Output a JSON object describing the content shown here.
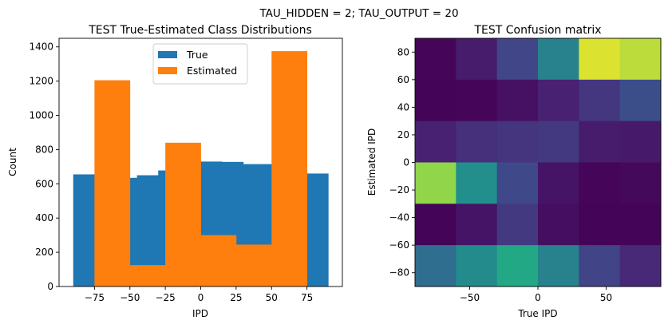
{
  "suptitle": "TAU_HIDDEN = 2; TAU_OUTPUT = 20",
  "chart_data": [
    {
      "type": "bar",
      "title": "TEST True-Estimated Class Distributions",
      "xlabel": "IPD",
      "ylabel": "Count",
      "xlim": [
        -100,
        100
      ],
      "ylim": [
        0,
        1450
      ],
      "xticks": [
        -75,
        -50,
        -25,
        0,
        25,
        50,
        75
      ],
      "xtick_labels": [
        "−75",
        "−50",
        "−25",
        "0",
        "25",
        "50",
        "75"
      ],
      "yticks": [
        0,
        200,
        400,
        600,
        800,
        1000,
        1200,
        1400
      ],
      "ytick_labels": [
        "0",
        "200",
        "400",
        "600",
        "800",
        "1000",
        "1200",
        "1400"
      ],
      "legend": {
        "position": "upper-center",
        "entries": [
          "True",
          "Estimated"
        ]
      },
      "series": [
        {
          "name": "True",
          "color": "#1f77b4",
          "bins": [
            {
              "x0": -90,
              "x1": -75,
              "value": 655
            },
            {
              "x0": -75,
              "x1": -60,
              "value": 645
            },
            {
              "x0": -60,
              "x1": -45,
              "value": 635
            },
            {
              "x0": -45,
              "x1": -30,
              "value": 650
            },
            {
              "x0": -30,
              "x1": -15,
              "value": 678
            },
            {
              "x0": -15,
              "x1": 0,
              "value": 735
            },
            {
              "x0": 0,
              "x1": 15,
              "value": 730
            },
            {
              "x0": 15,
              "x1": 30,
              "value": 728
            },
            {
              "x0": 30,
              "x1": 45,
              "value": 715
            },
            {
              "x0": 45,
              "x1": 60,
              "value": 715
            },
            {
              "x0": 60,
              "x1": 75,
              "value": 690
            },
            {
              "x0": 75,
              "x1": 90,
              "value": 660
            }
          ]
        },
        {
          "name": "Estimated",
          "color": "#ff7f0e",
          "bins": [
            {
              "x0": -75,
              "x1": -50,
              "value": 1205
            },
            {
              "x0": -50,
              "x1": -25,
              "value": 125
            },
            {
              "x0": -25,
              "x1": 0,
              "value": 840
            },
            {
              "x0": 0,
              "x1": 25,
              "value": 300
            },
            {
              "x0": 25,
              "x1": 50,
              "value": 245
            },
            {
              "x0": 50,
              "x1": 75,
              "value": 1375
            }
          ]
        }
      ]
    },
    {
      "type": "heatmap",
      "title": "TEST Confusion matrix",
      "xlabel": "True IPD",
      "ylabel": "Estimated IPD",
      "colormap": "viridis",
      "xlim": [
        -90,
        90
      ],
      "ylim": [
        -90,
        90
      ],
      "xticks": [
        -50,
        0,
        50
      ],
      "xtick_labels": [
        "−50",
        "0",
        "50"
      ],
      "yticks": [
        -80,
        -60,
        -40,
        -20,
        0,
        20,
        40,
        60,
        80
      ],
      "ytick_labels": [
        "−80",
        "−60",
        "−40",
        "−20",
        "0",
        "20",
        "40",
        "60",
        "80"
      ],
      "x_edges": [
        -90,
        -60,
        -30,
        0,
        30,
        60,
        90
      ],
      "y_edges": [
        -90,
        -60,
        -30,
        0,
        30,
        60,
        90
      ],
      "row_bands_top_to_bottom": [
        {
          "y0": 60,
          "y1": 90,
          "values": [
            0.02,
            0.1,
            0.26,
            0.55,
            0.97,
            0.94
          ]
        },
        {
          "y0": 30,
          "y1": 60,
          "values": [
            0.01,
            0.02,
            0.06,
            0.12,
            0.2,
            0.3
          ]
        },
        {
          "y0": 0,
          "y1": 30,
          "values": [
            0.12,
            0.17,
            0.19,
            0.21,
            0.1,
            0.09
          ]
        },
        {
          "y0": -30,
          "y1": 0,
          "values": [
            0.9,
            0.62,
            0.27,
            0.07,
            0.02,
            0.03
          ]
        },
        {
          "y0": -60,
          "y1": -30,
          "values": [
            0.01,
            0.07,
            0.21,
            0.05,
            0.01,
            0.01
          ]
        },
        {
          "y0": -90,
          "y1": -60,
          "values": [
            0.45,
            0.6,
            0.75,
            0.55,
            0.25,
            0.15
          ]
        }
      ]
    }
  ]
}
